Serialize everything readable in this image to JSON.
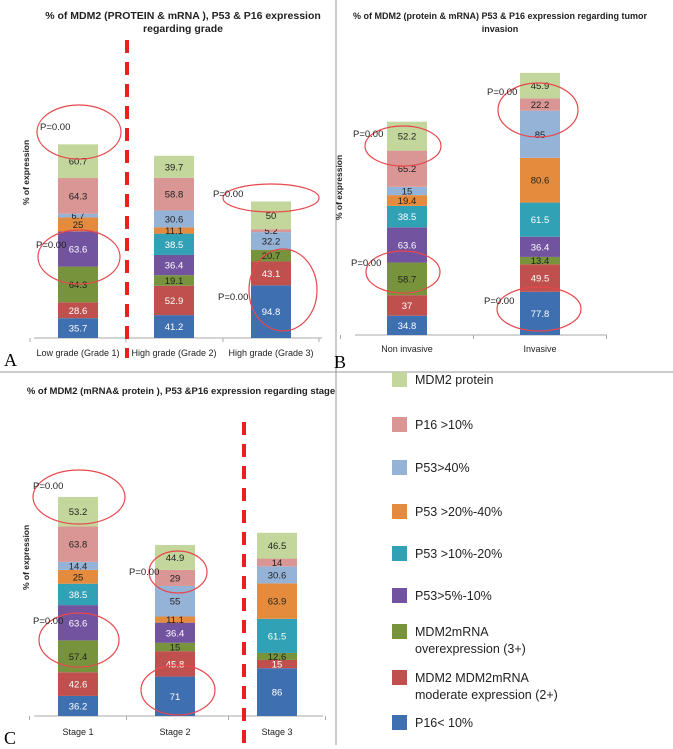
{
  "panel_labels": {
    "a": "A",
    "b": "B",
    "c": "C"
  },
  "y_axis_label": "% of expression",
  "legend": [
    {
      "name": "MDM2 protein",
      "color": "#c3d69b"
    },
    {
      "name": "P16 >10%",
      "color": "#d99694"
    },
    {
      "name": "P53>40%",
      "color": "#95b3d7"
    },
    {
      "name": "P53 >20%-40%",
      "color": "#e48b3d"
    },
    {
      "name": "P53 >10%-20%",
      "color": "#31a1b5"
    },
    {
      "name": "P53>5%-10%",
      "color": "#7153a0"
    },
    {
      "name": "MDM2mRNA\noverexpression  (3+)",
      "color": "#77933c"
    },
    {
      "name": "MDM2 MDM2mRNA\nmoderate expression (2+)",
      "color": "#c0504d"
    },
    {
      "name": "P16< 10%",
      "color": "#3e6fb0"
    }
  ],
  "chart_data": [
    {
      "type": "bar",
      "stacked": true,
      "title": "% of  MDM2 (PROTEIN &  mRNA ), P53 &  P16 expression regarding grade",
      "ylabel": "% of expression",
      "categories": [
        "Low grade (Grade 1)",
        "High grade (Grade 2)",
        "High grade (Grade 3)"
      ],
      "series": [
        {
          "name": "P16< 10%",
          "values": [
            35.7,
            41.2,
            94.8
          ]
        },
        {
          "name": "MDM2 MDM2mRNA moderate expression (2+)",
          "values": [
            28.6,
            52.9,
            43.1
          ]
        },
        {
          "name": "MDM2mRNA overexpression (3+)",
          "values": [
            64.3,
            19.1,
            20.7
          ]
        },
        {
          "name": "P53>5%-10%",
          "values": [
            63.6,
            36.4,
            0
          ]
        },
        {
          "name": "P53 >10%-20%",
          "values": [
            0,
            38.5,
            0
          ]
        },
        {
          "name": "P53 >20%-40%",
          "values": [
            25,
            11.1,
            0
          ]
        },
        {
          "name": "P53>40%",
          "values": [
            6.7,
            30.6,
            32.2
          ]
        },
        {
          "name": "P16 >10%",
          "values": [
            64.3,
            58.8,
            5.2
          ]
        },
        {
          "name": "MDM2 protein",
          "values": [
            60.7,
            39.7,
            50
          ]
        }
      ],
      "annotations": [
        "P=0.00",
        "P=0.00",
        "P=0.00",
        "P=0.00"
      ]
    },
    {
      "type": "bar",
      "stacked": true,
      "title": "% of  MDM2 (protein & mRNA) P53 & P16 expression regarding tumor invasion",
      "ylabel": "% of expression",
      "categories": [
        "Non invasive",
        "Invasive"
      ],
      "series": [
        {
          "name": "P16< 10%",
          "values": [
            34.8,
            77.8
          ]
        },
        {
          "name": "MDM2 MDM2mRNA moderate expression (2+)",
          "values": [
            37,
            49.5
          ]
        },
        {
          "name": "MDM2mRNA overexpression (3+)",
          "values": [
            58.7,
            13.4
          ]
        },
        {
          "name": "P53>5%-10%",
          "values": [
            63.6,
            36.4
          ]
        },
        {
          "name": "P53 >10%-20%",
          "values": [
            38.5,
            61.5
          ]
        },
        {
          "name": "P53 >20%-40%",
          "values": [
            19.4,
            80.6
          ]
        },
        {
          "name": "P53>40%",
          "values": [
            15,
            85
          ]
        },
        {
          "name": "P16 >10%",
          "values": [
            65.2,
            22.2
          ]
        },
        {
          "name": "MDM2 protein",
          "values": [
            52.2,
            45.9
          ]
        }
      ],
      "annotations": [
        "P=0.00",
        "P=0.00",
        "P=0.00",
        "P=0.00"
      ]
    },
    {
      "type": "bar",
      "stacked": true,
      "title": "% of  MDM2 (mRNA& protein ), P53 &P16  expression regarding stage",
      "ylabel": "% of expression",
      "categories": [
        "Stage 1",
        "Stage 2",
        "Stage 3"
      ],
      "series": [
        {
          "name": "P16< 10%",
          "values": [
            36.2,
            71,
            86
          ]
        },
        {
          "name": "MDM2 MDM2mRNA moderate expression (2+)",
          "values": [
            42.6,
            45.8,
            15
          ]
        },
        {
          "name": "MDM2mRNA overexpression (3+)",
          "values": [
            57.4,
            15,
            12.6
          ]
        },
        {
          "name": "P53>5%-10%",
          "values": [
            63.6,
            36.4,
            0
          ]
        },
        {
          "name": "P53 >10%-20%",
          "values": [
            38.5,
            0,
            61.5
          ]
        },
        {
          "name": "P53 >20%-40%",
          "values": [
            25,
            11.1,
            63.9
          ]
        },
        {
          "name": "P53>40%",
          "values": [
            14.4,
            55,
            30.6
          ]
        },
        {
          "name": "P16 >10%",
          "values": [
            63.8,
            29,
            14
          ]
        },
        {
          "name": "MDM2 protein",
          "values": [
            53.2,
            44.9,
            46.5
          ]
        }
      ],
      "annotations": [
        "P=0.00",
        "P=0.00",
        "P=0.00"
      ]
    }
  ]
}
